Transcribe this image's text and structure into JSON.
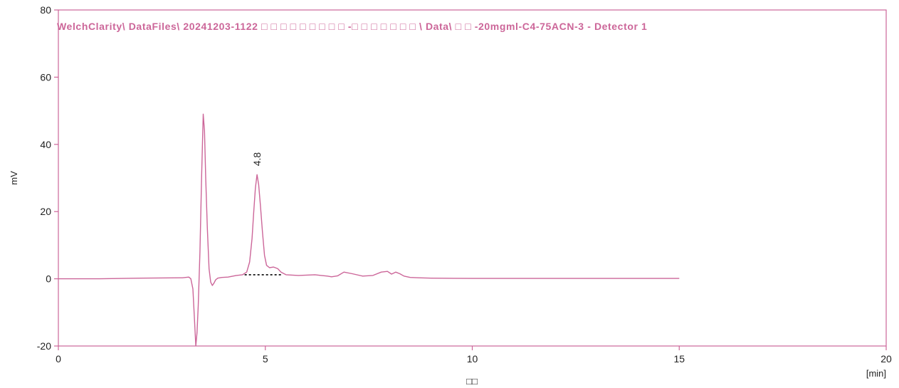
{
  "colors": {
    "frame": "#cc6699",
    "trace": "#cc6699",
    "title": "#cc6699",
    "baseline": "#000000",
    "text": "#222222"
  },
  "chart_data": {
    "type": "line",
    "title": "WelchClarity\\ DataFiles\\ 20241203-1122 □ □ □ □ □ □ □ □ □ -□ □ □ □ □ □ □ \\ Data\\ □ □ -20mgml-C4-75ACN-3 - Detector 1",
    "xlabel": "□□",
    "x_unit": "[min]",
    "ylabel": "mV",
    "xlim": [
      0,
      20
    ],
    "ylim": [
      -20,
      80
    ],
    "x_ticks": [
      "0",
      "5",
      "10",
      "15",
      "20"
    ],
    "y_ticks": [
      "-20",
      "0",
      "20",
      "40",
      "60",
      "80"
    ],
    "grid": false,
    "series": [
      {
        "x": [
          0,
          1,
          2,
          3.0,
          3.15,
          3.2,
          3.25,
          3.28,
          3.32,
          3.35,
          3.38,
          3.42,
          3.46,
          3.5,
          3.53,
          3.56,
          3.6,
          3.64,
          3.68,
          3.72,
          3.76,
          3.8,
          3.85,
          3.95,
          4.1,
          4.3,
          4.45,
          4.55,
          4.62,
          4.68,
          4.72,
          4.76,
          4.8,
          4.84,
          4.88,
          4.93,
          4.98,
          5.03,
          5.1,
          5.2,
          5.3,
          5.38,
          5.5,
          5.8,
          6.2,
          6.35,
          6.5,
          6.6,
          6.75,
          6.9,
          7.1,
          7.35,
          7.6,
          7.8,
          7.95,
          8.05,
          8.15,
          8.25,
          8.35,
          8.5,
          8.7,
          9.0,
          10,
          12,
          14,
          15
        ],
        "y": [
          0,
          0,
          0.2,
          0.3,
          0.5,
          0,
          -3,
          -10,
          -20,
          -16,
          -8,
          8,
          30,
          49,
          44,
          30,
          15,
          3,
          -1,
          -2,
          -1.3,
          -0.3,
          0.2,
          0.4,
          0.5,
          1.0,
          1.2,
          2.0,
          5,
          12,
          20,
          27,
          31,
          28,
          22,
          14,
          7,
          4,
          3.3,
          3.5,
          3.0,
          2.0,
          1.2,
          1.0,
          1.2,
          1.0,
          0.8,
          0.6,
          0.9,
          2.0,
          1.5,
          0.8,
          1.0,
          2.0,
          2.2,
          1.4,
          2.0,
          1.5,
          0.8,
          0.4,
          0.3,
          0.2,
          0.1,
          0.1,
          0.1,
          0.1
        ]
      }
    ],
    "peak_annotations": [
      {
        "label": "4.8",
        "x": 4.8,
        "y": 31
      }
    ],
    "integration_baseline": {
      "x_start": 4.5,
      "x_end": 5.4,
      "y": 1.2
    }
  }
}
